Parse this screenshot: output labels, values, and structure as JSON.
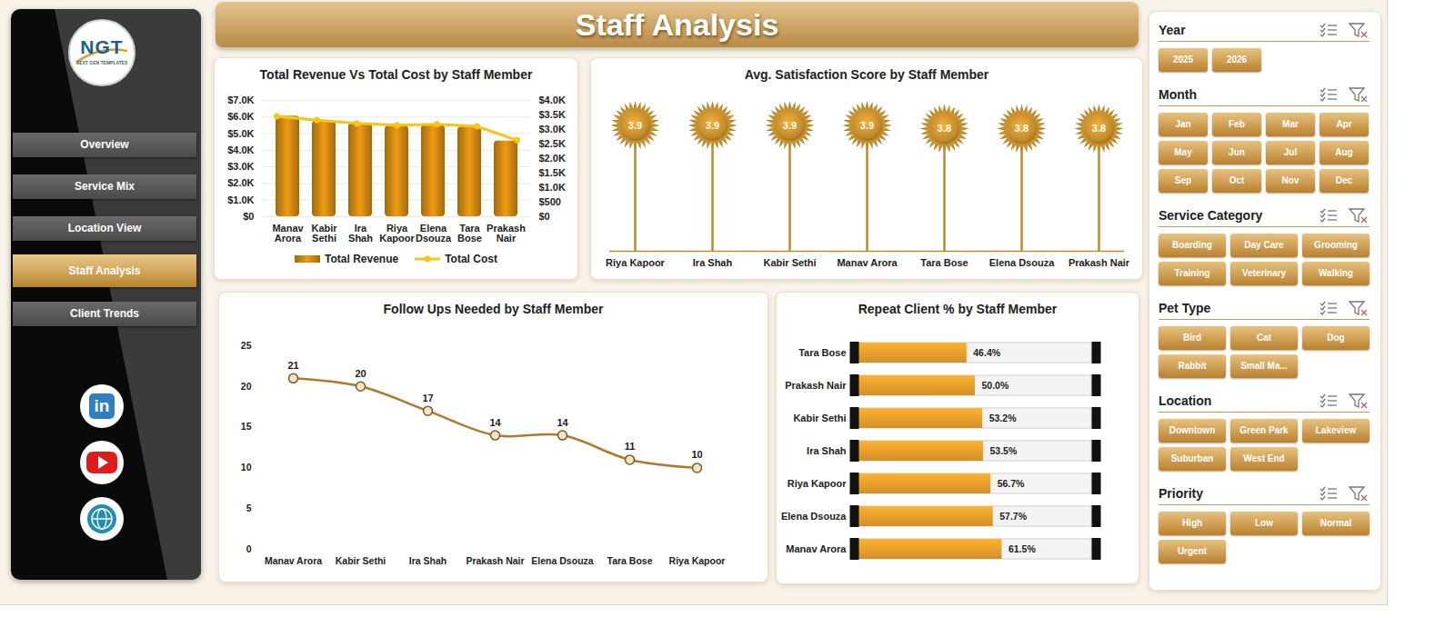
{
  "header": {
    "title": "Staff Analysis"
  },
  "sidebar": {
    "logo": "NGT",
    "logo_subtitle": "NEXT GEN TEMPLATES",
    "nav": [
      "Overview",
      "Service Mix",
      "Location View",
      "Staff Analysis",
      "Client Trends"
    ],
    "active": "Staff Analysis",
    "linkedin_mark": "in"
  },
  "slicers": [
    {
      "title": "Year",
      "items": [
        "2025",
        "2026"
      ]
    },
    {
      "title": "Month",
      "items": [
        "Jan",
        "Feb",
        "Mar",
        "Apr",
        "May",
        "Jun",
        "Jul",
        "Aug",
        "Sep",
        "Oct",
        "Nov",
        "Dec"
      ]
    },
    {
      "title": "Service Category",
      "items": [
        "Boarding",
        "Day Care",
        "Grooming",
        "Training",
        "Veterinary",
        "Walking"
      ]
    },
    {
      "title": "Pet Type",
      "items": [
        "Bird",
        "Cat",
        "Dog",
        "Rabbit",
        "Small Ma..."
      ]
    },
    {
      "title": "Location",
      "items": [
        "Downtown",
        "Green Park",
        "Lakeview",
        "Suburban",
        "West End"
      ]
    },
    {
      "title": "Priority",
      "items": [
        "High",
        "Low",
        "Normal",
        "Urgent"
      ]
    }
  ],
  "chart_data": [
    {
      "type": "bar",
      "title": "Total Revenue  Vs Total Cost by Staff Member",
      "categories": [
        "Manav Arora",
        "Kabir Sethi",
        "Ira Shah",
        "Riya Kapoor",
        "Elena Dsouza",
        "Tara Bose",
        "Prakash Nair"
      ],
      "series": [
        {
          "name": "Total Revenue",
          "type": "bar",
          "color": "#c7820f",
          "values": [
            6050,
            5750,
            5630,
            5450,
            5500,
            5400,
            4550
          ]
        },
        {
          "name": "Total Cost",
          "type": "line",
          "axis": "y2",
          "color": "#f5c518",
          "marker": "circle",
          "values": [
            3450,
            3320,
            3210,
            3150,
            3180,
            3110,
            2630
          ]
        }
      ],
      "ylim": [
        0,
        7000
      ],
      "yticks": [
        {
          "value": 0,
          "label": "$0"
        },
        {
          "value": 1000,
          "label": "$1.0K"
        },
        {
          "value": 2000,
          "label": "$2.0K"
        },
        {
          "value": 3000,
          "label": "$3.0K"
        },
        {
          "value": 4000,
          "label": "$4.0K"
        },
        {
          "value": 5000,
          "label": "$5.0K"
        },
        {
          "value": 6000,
          "label": "$6.0K"
        },
        {
          "value": 7000,
          "label": "$7.0K"
        }
      ],
      "y2lim": [
        0,
        4000
      ],
      "y2ticks": [
        {
          "value": 0,
          "label": "$0"
        },
        {
          "value": 500,
          "label": "$500"
        },
        {
          "value": 1000,
          "label": "$1.0K"
        },
        {
          "value": 1500,
          "label": "$1.5K"
        },
        {
          "value": 2000,
          "label": "$2.0K"
        },
        {
          "value": 2500,
          "label": "$2.5K"
        },
        {
          "value": 3000,
          "label": "$3.0K"
        },
        {
          "value": 3500,
          "label": "$3.5K"
        },
        {
          "value": 4000,
          "label": "$4.0K"
        }
      ],
      "grid": true,
      "legend": "bottom"
    },
    {
      "type": "lollipop",
      "title": "Avg. Satisfaction Score by Staff Member",
      "categories": [
        "Riya Kapoor",
        "Ira Shah",
        "Kabir Sethi",
        "Manav Arora",
        "Tara Bose",
        "Elena Dsouza",
        "Prakash Nair"
      ],
      "values": [
        3.9,
        3.9,
        3.9,
        3.9,
        3.8,
        3.8,
        3.8
      ],
      "color": "#c08a2c",
      "ylim": [
        0,
        4
      ],
      "data_labels": true,
      "tick_labels": "x"
    },
    {
      "type": "line",
      "title": "Follow Ups Needed by Staff Member",
      "categories": [
        "Manav Arora",
        "Kabir Sethi",
        "Ira Shah",
        "Prakash Nair",
        "Elena Dsouza",
        "Tara Bose",
        "Riya Kapoor"
      ],
      "values": [
        21,
        20,
        17,
        14,
        14,
        11,
        10
      ],
      "color": "#b07a2a",
      "marker": "circle",
      "ylim": [
        0,
        25
      ],
      "yticks": [
        0,
        5,
        10,
        15,
        20,
        25
      ],
      "grid": false,
      "data_labels": true
    },
    {
      "type": "bar",
      "orientation": "horizontal",
      "title": "Repeat Client % by Staff Member",
      "categories": [
        "Tara Bose",
        "Prakash Nair",
        "Kabir Sethi",
        "Ira Shah",
        "Riya Kapoor",
        "Elena Dsouza",
        "Manav Arora"
      ],
      "values": [
        46.4,
        50.0,
        53.2,
        53.5,
        56.7,
        57.7,
        61.5
      ],
      "value_labels": [
        "46.4%",
        "50.0%",
        "53.2%",
        "53.5%",
        "56.7%",
        "57.7%",
        "61.5%"
      ],
      "color": "#e39a2a",
      "xlim": [
        0,
        100
      ],
      "data_labels": true,
      "tick_labels": "y"
    }
  ]
}
